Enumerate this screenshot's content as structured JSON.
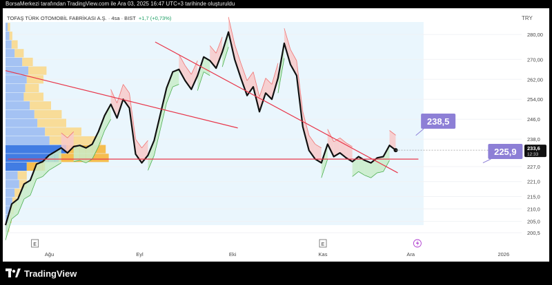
{
  "caption": "BorsaMerkezi tarafından TradingView.com ile Ara 03, 2025 16:47 UTC+3 tarihinde oluşturuldu",
  "brand": "TradingView",
  "chart_data": {
    "type": "line",
    "title": "TOFAŞ TÜRK OTOMOBİL FABRİKASI A.Ş. · 4sa · BIST",
    "change_text": "+1,7 (+0,73%)",
    "currency": "TRY",
    "ylim": [
      198,
      285
    ],
    "y_ticks": [
      "280,00",
      "270,00",
      "262,00",
      "254,00",
      "246,0",
      "238,0",
      "233,6",
      "227,0",
      "221,0",
      "215,0",
      "210,0",
      "205,0",
      "200,5"
    ],
    "y_tick_values": [
      280,
      270,
      262,
      254,
      246,
      238,
      233.6,
      227,
      221,
      215,
      210,
      205,
      200.5
    ],
    "x_labels": [
      "Ağu",
      "Eyl",
      "Eki",
      "Kas",
      "Ara",
      "2026"
    ],
    "last_price": "233,6",
    "countdown": "12:33",
    "event_markers": [
      "E",
      "E"
    ],
    "annotations": [
      {
        "text": "238,5",
        "y": 238.5
      },
      {
        "text": "225,9",
        "y": 225.9
      }
    ],
    "trendlines": [
      {
        "name": "falling-trendline-upper",
        "points": [
          [
            0.0,
            265.5
          ],
          [
            0.45,
            242.5
          ]
        ]
      },
      {
        "name": "falling-trendline-steep",
        "points": [
          [
            0.29,
            277.0
          ],
          [
            0.76,
            224.5
          ]
        ]
      }
    ],
    "support_level": 230.0,
    "price_series": {
      "x": [
        0.0,
        0.012,
        0.024,
        0.036,
        0.048,
        0.06,
        0.072,
        0.084,
        0.096,
        0.108,
        0.12,
        0.132,
        0.144,
        0.156,
        0.168,
        0.18,
        0.192,
        0.204,
        0.216,
        0.228,
        0.24,
        0.252,
        0.264,
        0.276,
        0.288,
        0.3,
        0.312,
        0.324,
        0.336,
        0.348,
        0.36,
        0.372,
        0.384,
        0.396,
        0.408,
        0.42,
        0.432,
        0.444,
        0.456,
        0.468,
        0.48,
        0.492,
        0.504,
        0.516,
        0.528,
        0.54,
        0.552,
        0.564,
        0.576,
        0.588,
        0.6,
        0.612,
        0.624,
        0.636,
        0.648,
        0.66,
        0.672,
        0.684,
        0.696,
        0.708,
        0.72,
        0.732,
        0.744,
        0.756
      ],
      "values": [
        203.5,
        212.0,
        214.0,
        220.0,
        221.5,
        228.0,
        229.0,
        231.5,
        233.0,
        234.5,
        232.5,
        235.0,
        235.5,
        234.5,
        236.0,
        241.0,
        247.5,
        252.0,
        246.5,
        254.0,
        250.5,
        232.0,
        228.5,
        231.5,
        237.5,
        248.0,
        258.5,
        265.0,
        266.0,
        261.5,
        258.0,
        263.5,
        271.0,
        269.5,
        266.5,
        273.0,
        281.0,
        270.0,
        262.5,
        255.5,
        259.0,
        249.0,
        256.5,
        254.0,
        262.5,
        276.5,
        268.0,
        263.5,
        243.0,
        233.5,
        230.0,
        228.5,
        236.0,
        231.0,
        232.5,
        230.5,
        229.0,
        231.0,
        229.5,
        228.5,
        230.5,
        231.0,
        235.5,
        233.6
      ]
    },
    "volume_profile": {
      "price_levels": [
        283.0,
        279.5,
        276.0,
        272.5,
        269.0,
        265.5,
        262.0,
        258.5,
        255.0,
        251.5,
        248.0,
        244.5,
        241.0,
        237.5,
        234.0,
        230.5,
        227.0,
        223.5,
        220.0,
        216.5,
        213.0,
        209.5,
        206.0,
        202.5
      ],
      "up_volume": [
        3,
        5,
        8,
        12,
        22,
        30,
        28,
        26,
        24,
        32,
        38,
        42,
        52,
        58,
        80,
        70,
        28,
        16,
        18,
        12,
        9,
        7,
        5,
        3
      ],
      "down_volume": [
        3,
        4,
        8,
        12,
        14,
        24,
        22,
        18,
        26,
        28,
        36,
        38,
        48,
        68,
        52,
        66,
        24,
        12,
        10,
        9,
        6,
        4,
        3,
        2
      ]
    }
  }
}
